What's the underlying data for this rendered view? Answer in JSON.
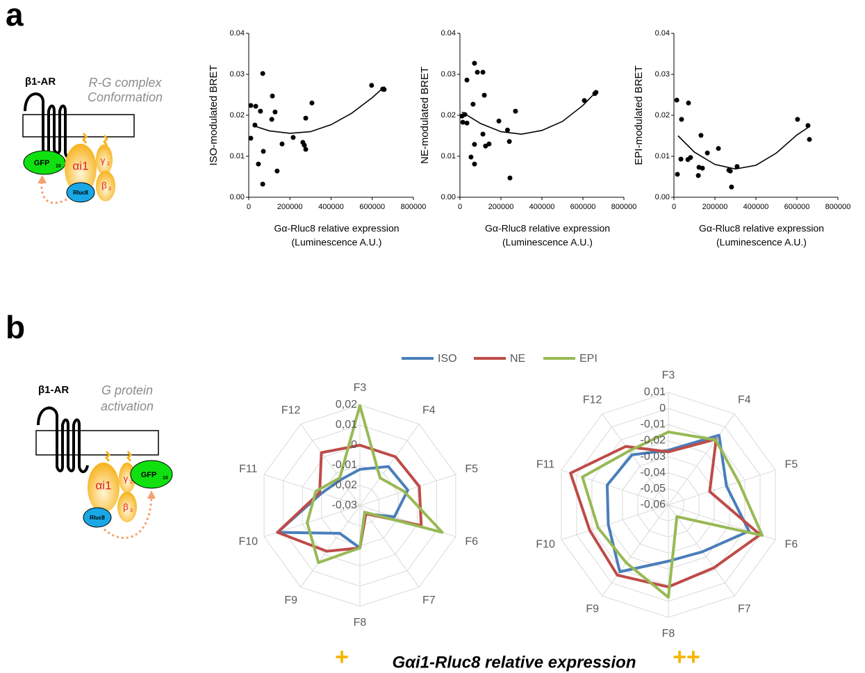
{
  "panel_a": "a",
  "panel_b": "b",
  "diagram_a": {
    "receptor": "β1-AR",
    "caption": [
      "R-G complex",
      "Conformation"
    ],
    "gfp": "GFP",
    "gfp_sub": "10",
    "galpha": "αi1",
    "ggamma": "γ",
    "gamma_sub": "2",
    "gbeta": "β",
    "beta_sub": "3",
    "rluc": "Rluc8"
  },
  "diagram_b": {
    "receptor": "β1-AR",
    "caption": [
      "G protein",
      "activation"
    ],
    "gfp": "GFP",
    "gfp_sub": "10",
    "galpha": "αi1",
    "ggamma": "γ",
    "gamma_sub": "2",
    "gbeta": "β",
    "beta_sub": "3",
    "rluc": "Rluc8"
  },
  "legend": [
    {
      "name": "ISO",
      "color": "#4a7ebb"
    },
    {
      "name": "NE",
      "color": "#be4b48"
    },
    {
      "name": "EPI",
      "color": "#98b954"
    }
  ],
  "footer": {
    "low": "+",
    "label": "Gαi1-Rluc8 relative expression",
    "high": "++"
  },
  "chart_data": [
    {
      "type": "scatter",
      "ylabel": "ISO-modulated BRET",
      "xlabel": [
        "Gα-Rluc8 relative expression",
        "(Luminescence A.U.)"
      ],
      "xlim": [
        0,
        800000
      ],
      "xticks": [
        0,
        200000,
        400000,
        600000,
        800000
      ],
      "ylim": [
        0,
        0.04
      ],
      "yticks": [
        {
          "value": 0,
          "label": "0.00"
        },
        {
          "value": 0.01,
          "label": "0.01"
        },
        {
          "value": 0.02,
          "label": "0.02"
        },
        {
          "value": 0.03,
          "label": "0.03"
        },
        {
          "value": 0.04,
          "label": "0.04"
        }
      ],
      "color": "#000000",
      "x": [
        10000,
        10000,
        34000,
        30000,
        47000,
        57000,
        68000,
        71000,
        68000,
        112000,
        115000,
        128000,
        138000,
        162000,
        216000,
        263000,
        270000,
        277000,
        277000,
        307000,
        597000,
        651000,
        658000
      ],
      "values": [
        0.0144,
        0.0224,
        0.0222,
        0.0176,
        0.0081,
        0.021,
        0.0302,
        0.0112,
        0.0032,
        0.019,
        0.0247,
        0.0208,
        0.0064,
        0.013,
        0.0146,
        0.0134,
        0.0127,
        0.0117,
        0.0193,
        0.023,
        0.0273,
        0.0264,
        0.0263
      ],
      "fit": {
        "x": [
          20000,
          100000,
          200000,
          300000,
          400000,
          500000,
          600000,
          660000
        ],
        "values": [
          0.0175,
          0.0162,
          0.0156,
          0.016,
          0.0177,
          0.0205,
          0.0243,
          0.027
        ]
      }
    },
    {
      "type": "scatter",
      "ylabel": "NE-modulated BRET",
      "xlabel": [
        "Gα-Rluc8 relative expression",
        "(Luminescence A.U.)"
      ],
      "xlim": [
        0,
        800000
      ],
      "xticks": [
        0,
        200000,
        400000,
        600000,
        800000
      ],
      "ylim": [
        0,
        0.04
      ],
      "yticks": [
        {
          "value": 0,
          "label": "0.00"
        },
        {
          "value": 0.01,
          "label": "0.01"
        },
        {
          "value": 0.02,
          "label": "0.02"
        },
        {
          "value": 0.03,
          "label": "0.03"
        },
        {
          "value": 0.04,
          "label": "0.04"
        }
      ],
      "color": "#000000",
      "x": [
        10000,
        14000,
        24000,
        34000,
        34000,
        54000,
        64000,
        71000,
        71000,
        71000,
        85000,
        112000,
        112000,
        119000,
        125000,
        142000,
        190000,
        232000,
        241000,
        244000,
        271000,
        607000,
        658000,
        664000
      ],
      "values": [
        0.0198,
        0.0183,
        0.0202,
        0.0181,
        0.0286,
        0.0098,
        0.0227,
        0.0129,
        0.0081,
        0.0327,
        0.0305,
        0.0154,
        0.0305,
        0.0249,
        0.0125,
        0.013,
        0.0186,
        0.0164,
        0.0136,
        0.0047,
        0.021,
        0.0236,
        0.0253,
        0.0256
      ],
      "fit": {
        "x": [
          10000,
          100000,
          200000,
          300000,
          400000,
          500000,
          600000,
          660000
        ],
        "values": [
          0.0208,
          0.018,
          0.016,
          0.0154,
          0.0163,
          0.0185,
          0.0224,
          0.0255
        ]
      }
    },
    {
      "type": "scatter",
      "ylabel": "EPI-modulated BRET",
      "xlabel": [
        "Gα-Rluc8 relative expression",
        "(Luminescence A.U.)"
      ],
      "xlim": [
        0,
        800000
      ],
      "xticks": [
        0,
        200000,
        400000,
        600000,
        800000
      ],
      "ylim": [
        0,
        0.04
      ],
      "yticks": [
        {
          "value": 0,
          "label": "0.00"
        },
        {
          "value": 0.01,
          "label": "0.01"
        },
        {
          "value": 0.02,
          "label": "0.02"
        },
        {
          "value": 0.03,
          "label": "0.03"
        },
        {
          "value": 0.04,
          "label": "0.04"
        }
      ],
      "color": "#000000",
      "x": [
        14000,
        17000,
        34000,
        37000,
        68000,
        71000,
        81000,
        119000,
        122000,
        132000,
        139000,
        163000,
        217000,
        268000,
        275000,
        281000,
        308000,
        603000,
        654000,
        661000
      ],
      "values": [
        0.0237,
        0.0056,
        0.0093,
        0.019,
        0.0092,
        0.023,
        0.0097,
        0.0053,
        0.0073,
        0.0151,
        0.0071,
        0.0108,
        0.0119,
        0.0066,
        0.0064,
        0.0025,
        0.0075,
        0.019,
        0.0175,
        0.0141
      ],
      "fit": {
        "x": [
          20000,
          100000,
          200000,
          300000,
          400000,
          500000,
          600000,
          660000
        ],
        "values": [
          0.015,
          0.011,
          0.008,
          0.0069,
          0.0078,
          0.0108,
          0.0152,
          0.0172
        ]
      }
    },
    {
      "type": "radar",
      "categories": [
        "F3",
        "F4",
        "F5",
        "F6",
        "F7",
        "F8",
        "F9",
        "F10",
        "F11",
        "F12"
      ],
      "rlim": [
        -0.03,
        0.02
      ],
      "rticks": [
        {
          "value": -0.03,
          "label": "-0,03"
        },
        {
          "value": -0.02,
          "label": "-0,02"
        },
        {
          "value": -0.01,
          "label": "-0,01"
        },
        0,
        {
          "value": 0.01,
          "label": "0,01"
        },
        {
          "value": 0.02,
          "label": "0,02"
        }
      ],
      "grid": true,
      "series": [
        {
          "color": "#4a7ebb",
          "values": [
            -0.012,
            -0.006,
            -0.005,
            -0.012,
            -0.025,
            -0.009,
            -0.013,
            0.013,
            -0.01,
            -0.014
          ]
        },
        {
          "color": "#be4b48",
          "values": [
            0.0,
            0.0,
            0.001,
            0.002,
            -0.025,
            -0.009,
            -0.002,
            0.013,
            -0.009,
            0.0025
          ]
        },
        {
          "color": "#98b954",
          "values": [
            0.0197,
            -0.013,
            -0.007,
            0.013,
            -0.026,
            -0.009,
            0.005,
            -0.0025,
            -0.007,
            -0.013
          ]
        }
      ]
    },
    {
      "type": "radar",
      "categories": [
        "F3",
        "F4",
        "F5",
        "F6",
        "F7",
        "F8",
        "F9",
        "F10",
        "F11",
        "F12"
      ],
      "rlim": [
        -0.06,
        0.01
      ],
      "rticks": [
        {
          "value": -0.06,
          "label": "-0,06"
        },
        {
          "value": -0.05,
          "label": "-0,05"
        },
        {
          "value": -0.04,
          "label": "-0,04"
        },
        {
          "value": -0.03,
          "label": "-0,03"
        },
        {
          "value": -0.02,
          "label": "-0,02"
        },
        {
          "value": -0.01,
          "label": "-0,01"
        },
        0,
        {
          "value": 0.01,
          "label": "0,01"
        }
      ],
      "grid": true,
      "series": [
        {
          "color": "#4a7ebb",
          "values": [
            -0.026,
            -0.0064,
            -0.022,
            -0.0073,
            -0.024,
            -0.025,
            -0.0086,
            -0.0207,
            -0.02,
            -0.0215
          ]
        },
        {
          "color": "#be4b48",
          "values": [
            -0.027,
            -0.0094,
            -0.033,
            0.0,
            -0.0117,
            -0.009,
            -0.006,
            -0.0086,
            0.004,
            -0.015
          ]
        },
        {
          "color": "#98b954",
          "values": [
            -0.0146,
            -0.01,
            -0.014,
            0.0014,
            -0.051,
            -0.0025,
            -0.0155,
            -0.014,
            -0.0038,
            -0.0185
          ]
        }
      ]
    }
  ]
}
